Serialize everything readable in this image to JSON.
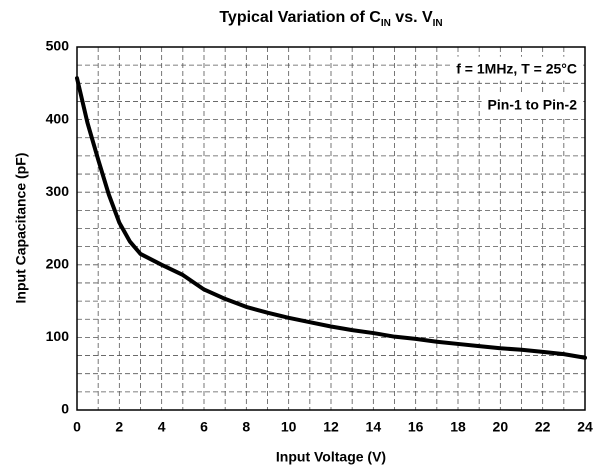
{
  "chart_data": {
    "type": "line",
    "title_parts": [
      "Typical Variation of C",
      "IN",
      " vs. V",
      "IN"
    ],
    "x_label": "Input Voltage (V)",
    "y_label": "Input Capacitance (pF)",
    "annotations": [
      "f = 1MHz, T = 25°C",
      "Pin-1 to Pin-2"
    ],
    "x": [
      0,
      0.5,
      1,
      1.5,
      2,
      2.5,
      3,
      4,
      5,
      6,
      7,
      8,
      9,
      10,
      11,
      12,
      13,
      14,
      15,
      16,
      17,
      18,
      19,
      20,
      21,
      22,
      23,
      24
    ],
    "series": [
      {
        "name": "Input Capacitance",
        "color": "#000000",
        "values": [
          457,
          395,
          345,
          297,
          258,
          232,
          215,
          200,
          186,
          166,
          153,
          142,
          134,
          127,
          121,
          115,
          110,
          106,
          101,
          98,
          94,
          91,
          88,
          85,
          83,
          80,
          77,
          72
        ]
      }
    ],
    "xlim": [
      0,
      24
    ],
    "xticks": [
      0,
      2,
      4,
      6,
      8,
      10,
      12,
      14,
      16,
      18,
      20,
      22,
      24
    ],
    "ylim": [
      0,
      500
    ],
    "yticks": [
      0,
      100,
      200,
      300,
      400,
      500
    ],
    "x_minor_ticks": [
      1,
      3,
      5,
      7,
      9,
      11,
      13,
      15,
      17,
      19,
      21,
      23
    ],
    "y_minor_ticks": [
      25,
      50,
      75,
      125,
      150,
      175,
      225,
      250,
      275,
      325,
      350,
      375,
      425,
      450,
      475
    ],
    "grid": true
  }
}
